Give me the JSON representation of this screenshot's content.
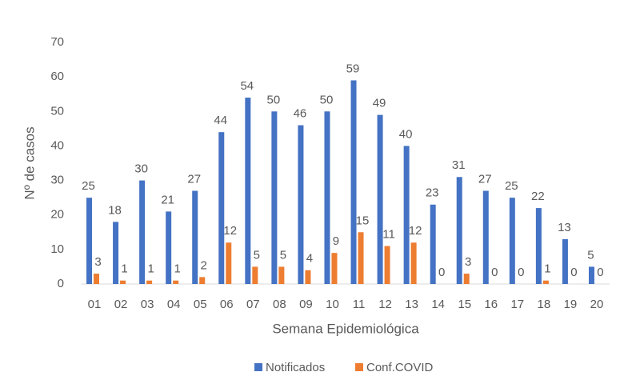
{
  "chart_data": {
    "type": "bar",
    "x_label": "Semana Epidemiológica",
    "y_label": "Nº de casos",
    "categories": [
      "01",
      "02",
      "03",
      "04",
      "05",
      "06",
      "07",
      "08",
      "09",
      "10",
      "11",
      "12",
      "13",
      "14",
      "15",
      "16",
      "17",
      "18",
      "19",
      "20"
    ],
    "series": [
      {
        "name": "Notificados",
        "color": "#4472c4",
        "values": [
          25,
          18,
          30,
          21,
          27,
          44,
          54,
          50,
          46,
          50,
          59,
          49,
          40,
          23,
          31,
          27,
          25,
          22,
          13,
          5
        ]
      },
      {
        "name": "Conf.COVID",
        "color": "#ed7d31",
        "values": [
          3,
          1,
          1,
          1,
          2,
          12,
          5,
          5,
          4,
          9,
          15,
          11,
          12,
          0,
          3,
          0,
          0,
          1,
          0,
          0
        ]
      }
    ],
    "ylim": [
      0,
      70
    ],
    "yticks": [
      0,
      10,
      20,
      30,
      40,
      50,
      60,
      70
    ],
    "grid": false,
    "legend": "bottom"
  }
}
